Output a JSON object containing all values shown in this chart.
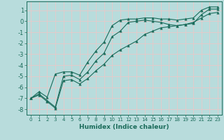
{
  "title": "",
  "xlabel": "Humidex (Indice chaleur)",
  "bg_color": "#b8dcdc",
  "grid_color": "#e8c8c8",
  "line_color": "#1a6b5a",
  "x": [
    0,
    1,
    2,
    3,
    4,
    5,
    6,
    7,
    8,
    9,
    10,
    11,
    12,
    13,
    14,
    15,
    16,
    17,
    18,
    19,
    20,
    21,
    22,
    23
  ],
  "y_mean": [
    -7.0,
    -6.6,
    -7.2,
    -7.8,
    -5.0,
    -4.9,
    -5.3,
    -4.6,
    -3.6,
    -2.9,
    -1.4,
    -0.9,
    -0.1,
    0.0,
    0.1,
    0.0,
    -0.1,
    -0.3,
    -0.4,
    -0.3,
    -0.2,
    0.6,
    1.1,
    1.1
  ],
  "y_min": [
    -7.0,
    -6.7,
    -7.3,
    -7.9,
    -5.4,
    -5.3,
    -5.7,
    -5.2,
    -4.5,
    -3.9,
    -3.1,
    -2.6,
    -2.2,
    -1.8,
    -1.2,
    -0.9,
    -0.6,
    -0.5,
    -0.4,
    -0.3,
    -0.1,
    0.3,
    0.7,
    0.8
  ],
  "y_max": [
    -7.0,
    -6.4,
    -6.9,
    -4.8,
    -4.6,
    -4.6,
    -4.9,
    -3.7,
    -2.7,
    -1.9,
    -0.4,
    0.1,
    0.2,
    0.2,
    0.3,
    0.3,
    0.2,
    0.2,
    0.1,
    0.2,
    0.3,
    1.0,
    1.3,
    1.3
  ],
  "xlim": [
    -0.5,
    23.5
  ],
  "ylim": [
    -8.5,
    1.8
  ],
  "yticks": [
    1,
    0,
    -1,
    -2,
    -3,
    -4,
    -5,
    -6,
    -7,
    -8
  ],
  "xticks": [
    0,
    1,
    2,
    3,
    4,
    5,
    6,
    7,
    8,
    9,
    10,
    11,
    12,
    13,
    14,
    15,
    16,
    17,
    18,
    19,
    20,
    21,
    22,
    23
  ],
  "marker": "^",
  "markersize": 2.5,
  "linewidth": 0.8
}
